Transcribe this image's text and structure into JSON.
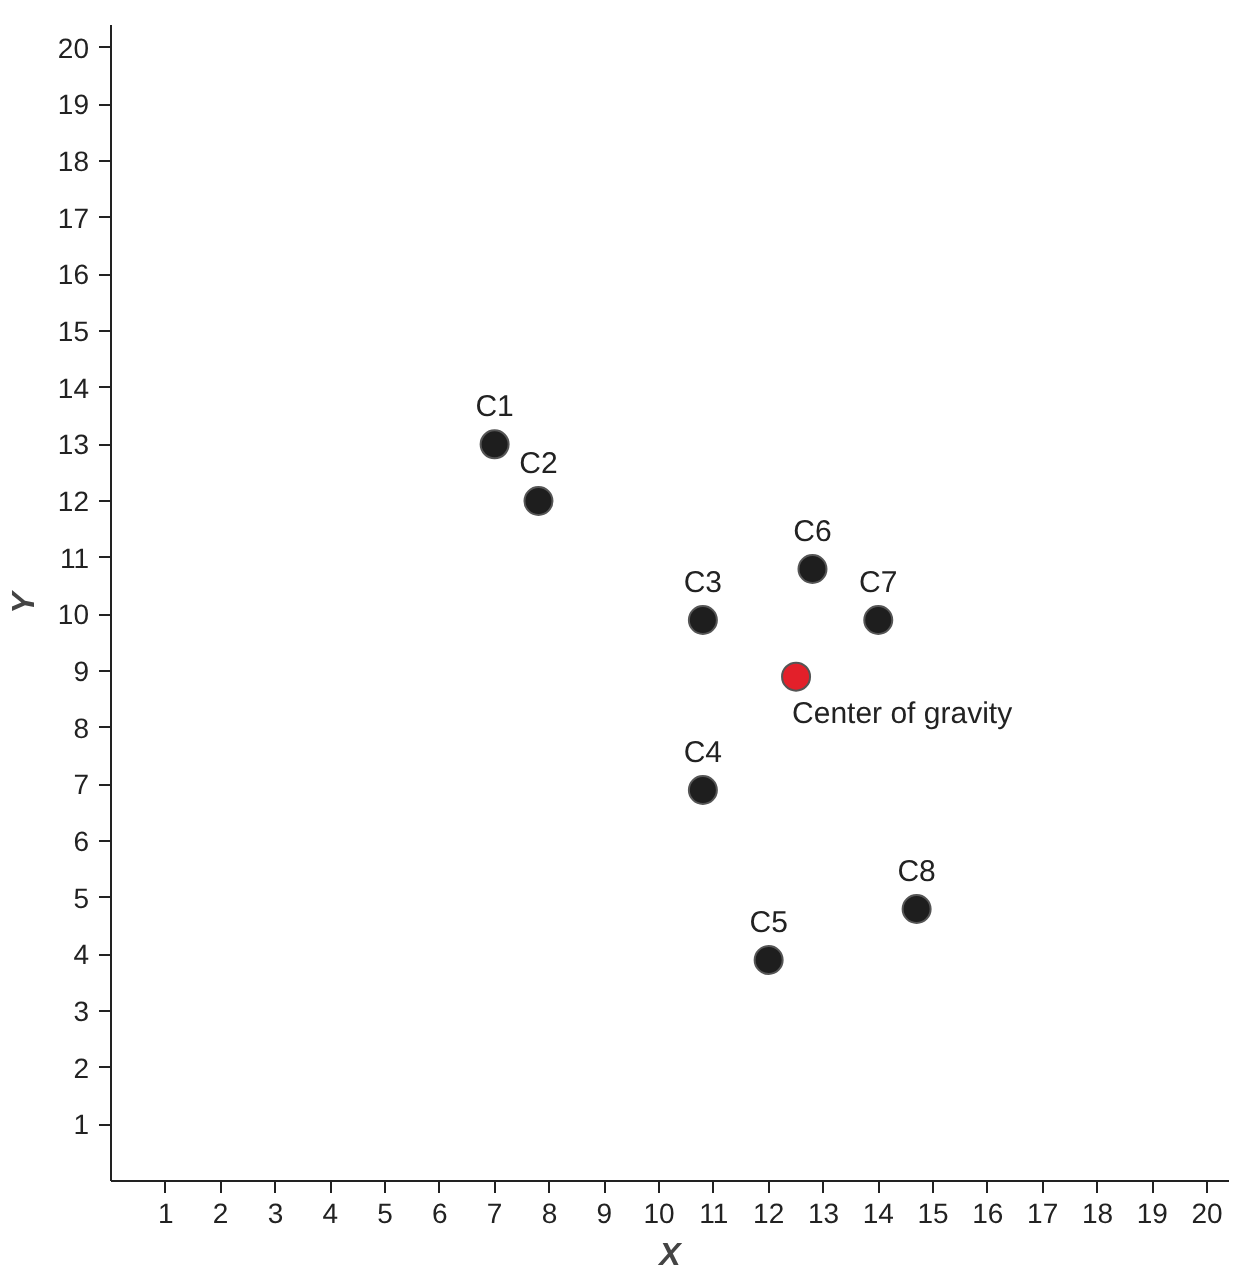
{
  "chart_data": {
    "type": "scatter",
    "xlabel": "X",
    "ylabel": "Y",
    "series": [
      {
        "color": "#1e1e1e",
        "x": [
          7.0,
          7.8,
          10.8,
          12.8,
          14.0,
          10.8,
          12.0,
          14.7
        ],
        "values": [
          13.0,
          12.0,
          9.9,
          10.8,
          9.9,
          6.9,
          3.9,
          4.8
        ]
      },
      {
        "color": "#e3202a",
        "x": [
          12.5
        ],
        "values": [
          8.9
        ]
      }
    ],
    "annotations": [
      {
        "text": "C1",
        "x": 7.0,
        "y": 13.0
      },
      {
        "text": "C2",
        "x": 7.8,
        "y": 12.0
      },
      {
        "text": "C3",
        "x": 10.8,
        "y": 9.9
      },
      {
        "text": "C6",
        "x": 12.8,
        "y": 10.8
      },
      {
        "text": "C7",
        "x": 14.0,
        "y": 9.9
      },
      {
        "text": "C4",
        "x": 10.8,
        "y": 6.9
      },
      {
        "text": "C5",
        "x": 12.0,
        "y": 3.9
      },
      {
        "text": "C8",
        "x": 14.7,
        "y": 4.8
      },
      {
        "text": "Center of gravity",
        "x": 12.5,
        "y": 8.9
      }
    ],
    "xlim": [
      0,
      20.4
    ],
    "ylim": [
      0,
      20.4
    ],
    "xticks": [
      1,
      2,
      3,
      4,
      5,
      6,
      7,
      8,
      9,
      10,
      11,
      12,
      13,
      14,
      15,
      16,
      17,
      18,
      19,
      20
    ],
    "yticks": [
      1,
      2,
      3,
      4,
      5,
      6,
      7,
      8,
      9,
      10,
      11,
      12,
      13,
      14,
      15,
      16,
      17,
      18,
      19,
      20
    ],
    "grid": false,
    "marker": "circle"
  }
}
